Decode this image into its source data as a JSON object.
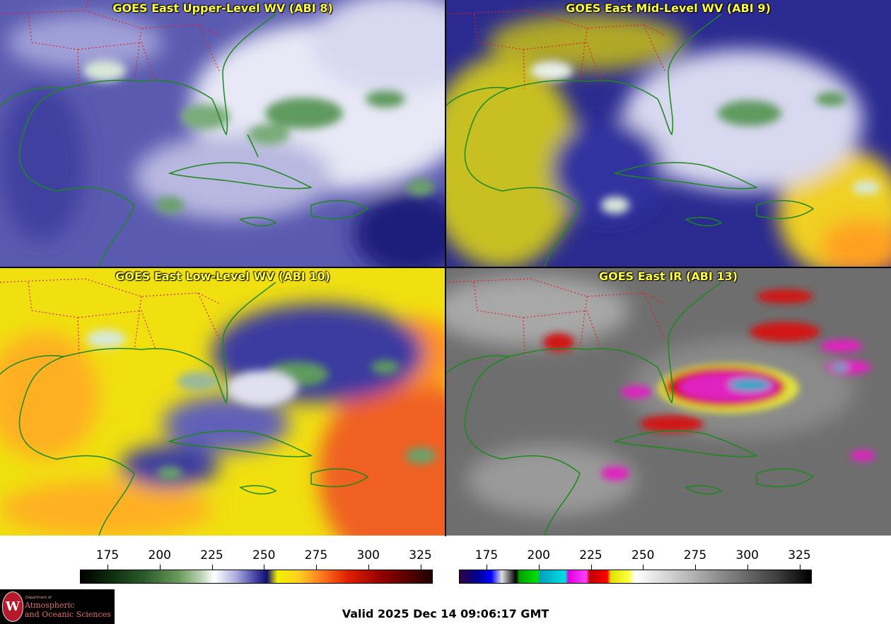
{
  "panels": {
    "upper_wv": {
      "title": "GOES East Upper-Level WV (ABI 8)",
      "palette": "purple-white"
    },
    "mid_wv": {
      "title": "GOES East Mid-Level WV (ABI 9)",
      "palette": "navy-yellow"
    },
    "low_wv": {
      "title": "GOES East Low-Level WV (ABI 10)",
      "palette": "yellow-orange"
    },
    "ir": {
      "title": "GOES East IR (ABI 13)",
      "palette": "gray-enhanced"
    }
  },
  "colorbars": {
    "wv": {
      "ticks": [
        "175",
        "200",
        "225",
        "250",
        "275",
        "300",
        "325"
      ]
    },
    "ir": {
      "ticks": [
        "175",
        "200",
        "225",
        "250",
        "275",
        "300",
        "325"
      ]
    }
  },
  "valid_time": "Valid 2025 Dec 14 09:06:17 GMT",
  "logo": {
    "department": "Department of",
    "name_line1": "Atmospheric",
    "name_line2": "and Oceanic Sciences",
    "seal_letter": "W"
  },
  "colors": {
    "title_text": "#ffff3a",
    "coastline": "#1a8a1a",
    "state_borders": "#e02020"
  }
}
